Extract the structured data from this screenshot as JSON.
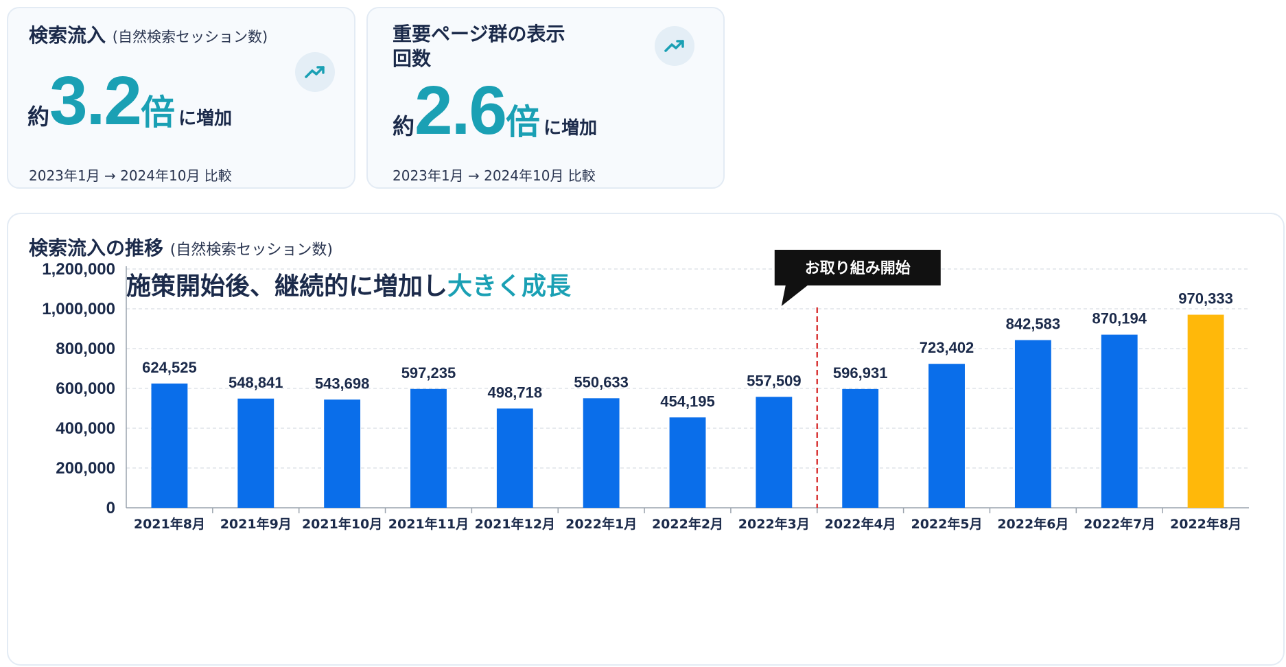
{
  "stats": [
    {
      "title": "検索流入",
      "title_sub": "(自然検索セッション数)",
      "prefix": "約",
      "value": "3.2",
      "unit": "倍",
      "suffix": "に増加",
      "note": "2023年1月 → 2024年10月 比較",
      "icon": "trending-up-icon"
    },
    {
      "title": "重要ページ群の表示回数",
      "title_sub": "",
      "prefix": "約",
      "value": "2.6",
      "unit": "倍",
      "suffix": "に増加",
      "note": "2023年1月 → 2024年10月 比較",
      "icon": "trending-up-icon"
    }
  ],
  "chart_header": {
    "title": "検索流入の推移",
    "title_sub": "(自然検索セッション数)",
    "subtitle_main": "施策開始後、継続的に増加し",
    "subtitle_accent": "大きく成長"
  },
  "colors": {
    "bar": "#0a6eea",
    "highlight_bar": "#ffb80a",
    "accent": "#1aa0b4",
    "marker_line": "#d93a3a",
    "callout_bg": "#111111"
  },
  "chart_data": {
    "type": "bar",
    "categories": [
      "2021年8月",
      "2021年9月",
      "2021年10月",
      "2021年11月",
      "2021年12月",
      "2022年1月",
      "2022年2月",
      "2022年3月",
      "2022年4月",
      "2022年5月",
      "2022年6月",
      "2022年7月",
      "2022年8月"
    ],
    "values": [
      624525,
      548841,
      543698,
      597235,
      498718,
      550633,
      454195,
      557509,
      596931,
      723402,
      842583,
      870194,
      970333
    ],
    "value_labels": [
      "624,525",
      "548,841",
      "543,698",
      "597,235",
      "498,718",
      "550,633",
      "454,195",
      "557,509",
      "596,931",
      "723,402",
      "842,583",
      "870,194",
      "970,333"
    ],
    "highlight_index": 12,
    "ylim": [
      0,
      1200000
    ],
    "yticks": [
      0,
      200000,
      400000,
      600000,
      800000,
      1000000,
      1200000
    ],
    "ytick_labels": [
      "0",
      "200,000",
      "400,000",
      "600,000",
      "800,000",
      "1,000,000",
      "1,200,000"
    ],
    "grid": true,
    "xlabel": "",
    "ylabel": "",
    "annotation": {
      "text": "お取り組み開始",
      "between_categories": [
        "2022年3月",
        "2022年4月"
      ]
    }
  }
}
